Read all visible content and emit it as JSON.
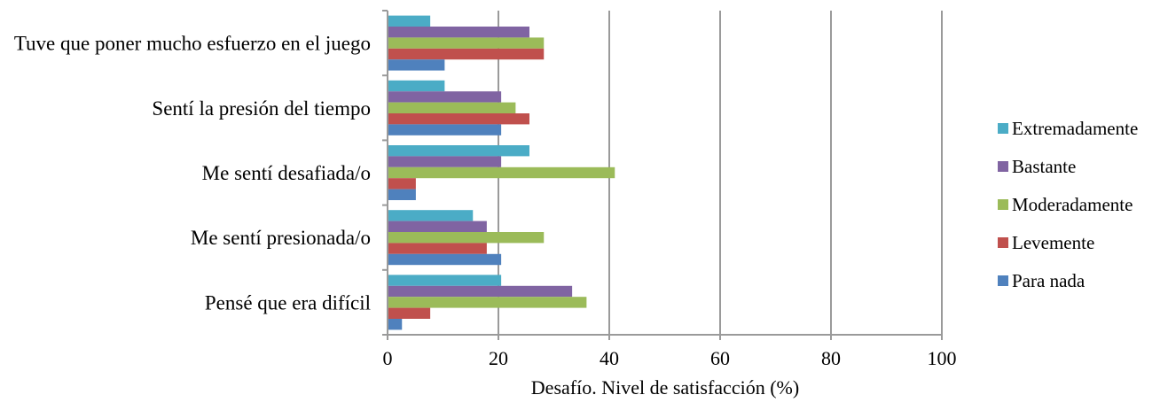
{
  "chart_data": {
    "type": "bar",
    "orientation": "horizontal",
    "title": "",
    "xlabel": "Desafío. Nivel de satisfacción (%)",
    "ylabel": "",
    "xlim": [
      0,
      100
    ],
    "xticks": [
      "0",
      "20",
      "40",
      "60",
      "80",
      "100"
    ],
    "grid": true,
    "legend_position": "right",
    "categories": [
      "Tuve que poner mucho esfuerzo en el juego",
      "Sentí la presión del tiempo",
      "Me sentí desafiada/o",
      "Me sentí presionada/o",
      "Pensé que era difícil"
    ],
    "series": [
      {
        "name": "Extremadamente",
        "color": "#4bacc6",
        "values": [
          7.7,
          10.3,
          25.6,
          15.4,
          20.5
        ]
      },
      {
        "name": "Bastante",
        "color": "#8064a2",
        "values": [
          25.6,
          20.5,
          20.5,
          17.9,
          33.3
        ]
      },
      {
        "name": "Moderadamente",
        "color": "#9bbb59",
        "values": [
          28.2,
          23.1,
          41.0,
          28.2,
          35.9
        ]
      },
      {
        "name": "Levemente",
        "color": "#c0504d",
        "values": [
          28.2,
          25.6,
          5.1,
          17.9,
          7.7
        ]
      },
      {
        "name": "Para nada",
        "color": "#4f81bd",
        "values": [
          10.3,
          20.5,
          5.1,
          20.5,
          2.6
        ]
      }
    ]
  }
}
